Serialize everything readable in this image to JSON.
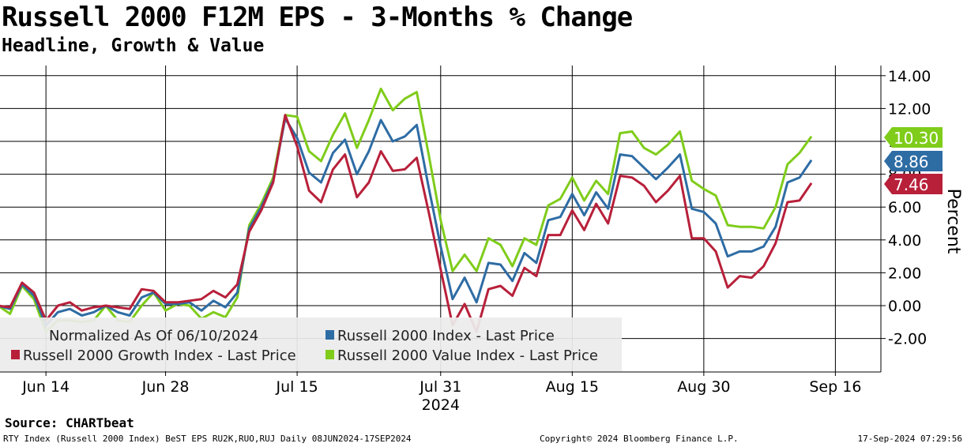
{
  "header": {
    "title": "Russell 2000 F12M EPS - 3-Months % Change",
    "subtitle": "Headline, Growth & Value"
  },
  "chart_data": {
    "type": "line",
    "ylabel": "Percent",
    "ylim": [
      -4,
      14.5
    ],
    "y_ticks": [
      14,
      12,
      10,
      8,
      6,
      4,
      2,
      0,
      -2
    ],
    "y_tick_labels": [
      "14.00",
      "12.00",
      "10.00",
      "8.00",
      "6.00",
      "4.00",
      "2.00",
      "0.00",
      "-2.00"
    ],
    "x_tick_labels": [
      "Jun 14",
      "Jun 28",
      "Jul 15",
      "Jul 31",
      "Aug 15",
      "Aug 30",
      "Sep 16"
    ],
    "x_tick_index": [
      4,
      14,
      25,
      37,
      48,
      59,
      70
    ],
    "year_label": "2024",
    "year_tick_index": 37,
    "annotation": "Normalized As Of 06/10/2024",
    "series": [
      {
        "name": "Russell 2000 Index - Last Price",
        "color": "#2e6ca4",
        "last_value": "8.86",
        "values": [
          0,
          -0.2,
          1.3,
          0.6,
          -1.2,
          -0.4,
          -0.2,
          -0.6,
          -0.4,
          0,
          -0.4,
          -0.6,
          0.5,
          0.8,
          0.1,
          0.1,
          0.2,
          -0.3,
          0.3,
          -0.1,
          0.8,
          4.7,
          6,
          7.6,
          11.4,
          10.2,
          8.1,
          7.5,
          9.3,
          10.1,
          8,
          9.4,
          11.3,
          10,
          10.3,
          11,
          7.2,
          3.6,
          0.4,
          1.7,
          0.2,
          2.6,
          2.5,
          1.5,
          3.2,
          2.6,
          5.2,
          5.4,
          6.8,
          5.5,
          6.9,
          5.9,
          9.2,
          9.1,
          8.4,
          7.7,
          8.4,
          9.2,
          5.9,
          5.7,
          5,
          3,
          3.3,
          3.3,
          3.6,
          4.8,
          7.5,
          7.8,
          8.86
        ]
      },
      {
        "name": "Russell 2000 Growth Index - Last Price",
        "color": "#b8203a",
        "last_value": "7.46",
        "values": [
          0,
          -0.1,
          1.4,
          0.8,
          -0.9,
          0,
          0.2,
          -0.3,
          -0.1,
          0,
          -0.1,
          -0.2,
          1,
          0.9,
          0.2,
          0.2,
          0.3,
          0.4,
          0.9,
          0.5,
          1.3,
          4.5,
          5.8,
          7.5,
          11.6,
          9.7,
          7,
          6.3,
          8.3,
          9.2,
          6.6,
          7.5,
          9.4,
          8.2,
          8.3,
          9,
          5.7,
          2.2,
          -1.2,
          0.1,
          -1.6,
          1,
          1.2,
          0.6,
          2.3,
          1.8,
          4.3,
          4.3,
          5.8,
          4.6,
          6.2,
          5,
          7.9,
          7.8,
          7.3,
          6.3,
          7,
          7.9,
          4.1,
          4.1,
          3.3,
          1.1,
          1.8,
          1.7,
          2.4,
          3.8,
          6.3,
          6.4,
          7.46
        ]
      },
      {
        "name": "Russell 2000 Value Index - Last Price",
        "color": "#7fcc1a",
        "last_value": "10.30",
        "values": [
          0,
          -0.5,
          1.2,
          0.4,
          -1.6,
          -0.9,
          -0.9,
          -1,
          -0.9,
          0,
          -0.9,
          -1,
          0,
          0.8,
          -0.3,
          0.1,
          0,
          -0.8,
          -0.4,
          -0.7,
          0.5,
          4.9,
          6.2,
          7.8,
          11.6,
          11.5,
          9.4,
          8.8,
          10.4,
          11.7,
          9.6,
          11.3,
          13.2,
          11.9,
          12.6,
          13,
          9.2,
          5.2,
          2.1,
          3.1,
          2.1,
          4.1,
          3.7,
          2.4,
          4.1,
          3.7,
          6.1,
          6.5,
          7.8,
          6.4,
          7.6,
          6.8,
          10.5,
          10.6,
          9.6,
          9.2,
          9.8,
          10.6,
          7.6,
          7.1,
          6.7,
          4.9,
          4.8,
          4.8,
          4.7,
          6,
          8.6,
          9.3,
          10.3
        ]
      }
    ]
  },
  "footer": {
    "source": "Source: CHARTbeat",
    "ticker_info": "RTY Index (Russell 2000 Index) BeST EPS RU2K,RUO,RUJ  Daily 08JUN2024-17SEP2024",
    "copyright": "Copyright© 2024 Bloomberg Finance L.P.",
    "timestamp": "17-Sep-2024 07:29:56"
  }
}
